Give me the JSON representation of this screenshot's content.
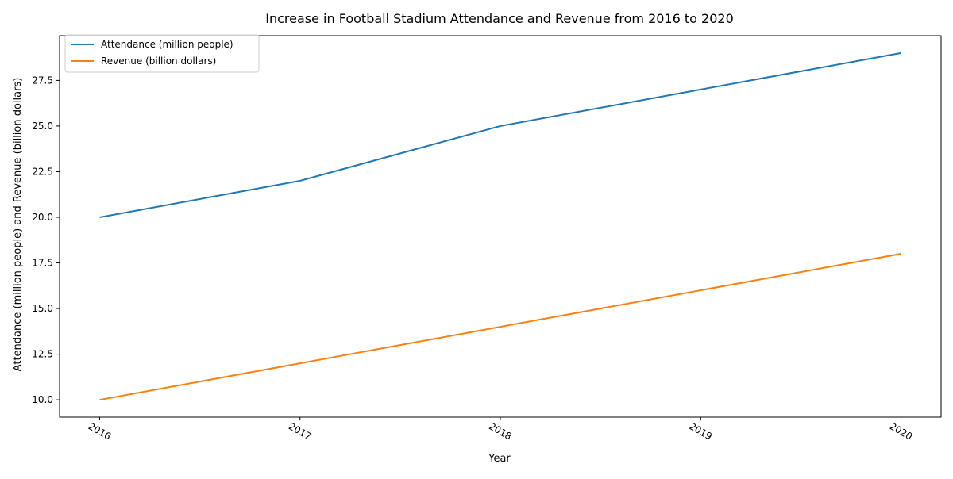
{
  "chart_data": {
    "type": "line",
    "title": "Increase in Football Stadium Attendance and Revenue from 2016 to 2020",
    "xlabel": "Year",
    "ylabel": "Attendance (million people) and Revenue (billion dollars)",
    "x": [
      2016,
      2017,
      2018,
      2019,
      2020
    ],
    "x_tick_labels": [
      "2016",
      "2017",
      "2018",
      "2019",
      "2020"
    ],
    "y_ticks": [
      10.0,
      12.5,
      15.0,
      17.5,
      20.0,
      22.5,
      25.0,
      27.5
    ],
    "y_tick_labels": [
      "10.0",
      "12.5",
      "15.0",
      "17.5",
      "20.0",
      "22.5",
      "25.0",
      "27.5"
    ],
    "ylim": [
      9.05,
      29.95
    ],
    "xlim": [
      2015.8,
      2020.2
    ],
    "grid": false,
    "legend_position": "upper-left",
    "series": [
      {
        "name": "Attendance (million people)",
        "color": "#1f77b4",
        "values": [
          20,
          22,
          25,
          27,
          29
        ]
      },
      {
        "name": "Revenue (billion dollars)",
        "color": "#ff7f0e",
        "values": [
          10,
          12,
          14,
          16,
          18
        ]
      }
    ]
  }
}
